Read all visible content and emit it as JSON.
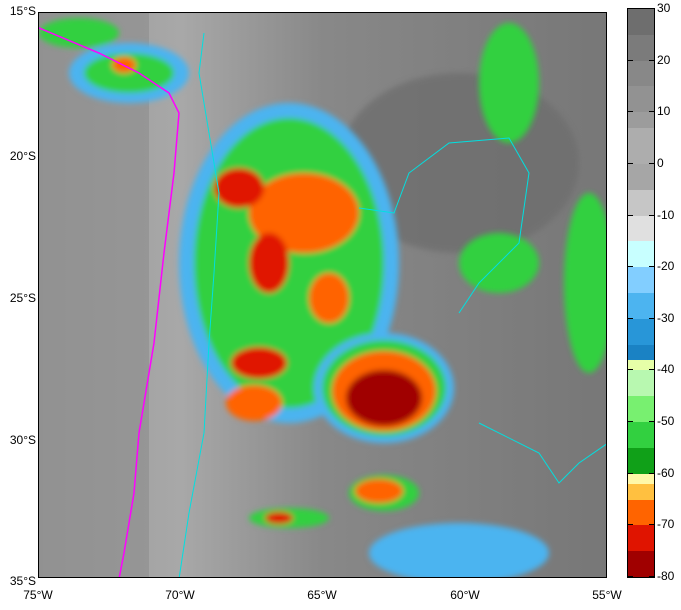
{
  "map": {
    "lat_labels": [
      "15°S",
      "20°S",
      "25°S",
      "30°S",
      "35°S"
    ],
    "lon_labels": [
      "75°W",
      "70°W",
      "65°W",
      "60°W",
      "55°W"
    ],
    "extent": {
      "lon": [
        -75,
        -55
      ],
      "lat": [
        -35,
        -15
      ]
    }
  },
  "colorbar": {
    "ticks": [
      "30",
      "20",
      "10",
      "0",
      "-10",
      "-20",
      "-30",
      "-40",
      "-50",
      "-60",
      "-70",
      "-80"
    ],
    "range": [
      -80,
      30
    ],
    "segments": [
      {
        "from": 30,
        "to": 25,
        "color": "#6e6e6e"
      },
      {
        "from": 25,
        "to": 20,
        "color": "#7b7b7b"
      },
      {
        "from": 20,
        "to": 15,
        "color": "#888888"
      },
      {
        "from": 15,
        "to": 10,
        "color": "#929292"
      },
      {
        "from": 10,
        "to": 7,
        "color": "#9c9c9c"
      },
      {
        "from": 7,
        "to": 0,
        "color": "#adadad"
      },
      {
        "from": 0,
        "to": -5,
        "color": "#a6a6a6"
      },
      {
        "from": -5,
        "to": -10,
        "color": "#c6c6c6"
      },
      {
        "from": -10,
        "to": -15,
        "color": "#e0e0e0"
      },
      {
        "from": -15,
        "to": -20,
        "color": "#c8ffff"
      },
      {
        "from": -20,
        "to": -25,
        "color": "#82ceff"
      },
      {
        "from": -25,
        "to": -30,
        "color": "#4cb4f0"
      },
      {
        "from": -30,
        "to": -35,
        "color": "#2896d8"
      },
      {
        "from": -35,
        "to": -38,
        "color": "#1a82c4"
      },
      {
        "from": -38,
        "to": -40,
        "color": "#e6ffa8"
      },
      {
        "from": -40,
        "to": -45,
        "color": "#b8f8b0"
      },
      {
        "from": -45,
        "to": -50,
        "color": "#78f070"
      },
      {
        "from": -50,
        "to": -55,
        "color": "#32d040"
      },
      {
        "from": -55,
        "to": -60,
        "color": "#10a018"
      },
      {
        "from": -60,
        "to": -62,
        "color": "#fff8a8"
      },
      {
        "from": -62,
        "to": -65,
        "color": "#ffc040"
      },
      {
        "from": -65,
        "to": -70,
        "color": "#ff6400"
      },
      {
        "from": -70,
        "to": -75,
        "color": "#e01400"
      },
      {
        "from": -75,
        "to": -80,
        "color": "#a00000"
      }
    ]
  },
  "colors": {
    "coastline": "#ff00ff",
    "borders": "#00e0e0"
  }
}
